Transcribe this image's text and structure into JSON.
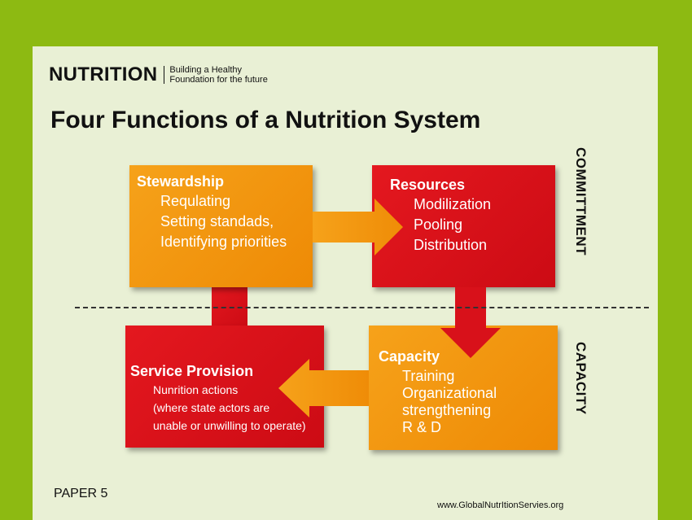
{
  "header": {
    "brand": "NUTRITION",
    "tagline_line1": "Building a Healthy",
    "tagline_line2": "Foundation for the future"
  },
  "title": "Four Functions of a Nutrition System",
  "boxes": {
    "stewardship": {
      "title": "Stewardship",
      "items": [
        "Requlating",
        "Setting standads,",
        "Identifying priorities"
      ]
    },
    "resources": {
      "title": "Resources",
      "items": [
        "Modilization",
        "Pooling",
        "Distribution"
      ]
    },
    "service_provision": {
      "title": "Service Provision",
      "items": [
        "Nunrition actions",
        "(where state actors are",
        "unable or unwilling to operate)"
      ]
    },
    "capacity": {
      "title": "Capacity",
      "items": [
        "Training",
        "Organizational",
        "strengthening",
        "R & D"
      ]
    }
  },
  "side_labels": {
    "commitment": "COMMITTMENT",
    "capacity": "CAPACITY"
  },
  "footer": {
    "paper": "PAPER 5",
    "url": "www.GlobalNutrItionServies.org"
  },
  "colors": {
    "background_green": "#8dba12",
    "panel": "#e9f0d5",
    "orange": "#f09210",
    "red": "#d8111a"
  }
}
